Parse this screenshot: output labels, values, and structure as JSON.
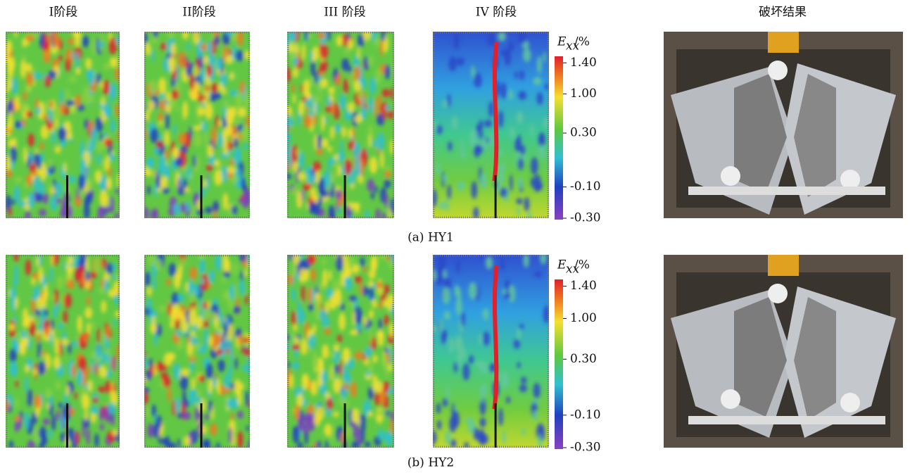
{
  "headers": [
    "I阶段",
    "II阶段",
    "III 阶段",
    "IV 阶段",
    "破坏结果"
  ],
  "rows": [
    {
      "caption": "(a)  HY1",
      "colorbar": {
        "symbol": "E",
        "subscript": "xx",
        "unit": "/%",
        "ticks": [
          "1.40",
          "1.00",
          "0.30",
          "-0.10",
          "-0.30"
        ]
      }
    },
    {
      "caption": "(b)  HY2",
      "colorbar": {
        "symbol": "E",
        "subscript": "xx",
        "unit": "/%",
        "ticks": [
          "1.40",
          "1.00",
          "0.30",
          "-0.10",
          "-0.30"
        ]
      }
    }
  ]
}
